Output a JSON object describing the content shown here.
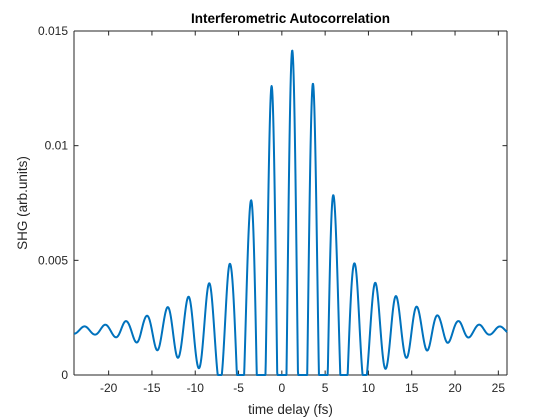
{
  "chart_data": {
    "type": "line",
    "title": "Interferometric Autocorrelation",
    "xlabel": "time delay (fs)",
    "ylabel": "SHG (arb.units)",
    "xlim": [
      -24,
      26
    ],
    "ylim": [
      0,
      0.015
    ],
    "x_ticks": [
      -20,
      -15,
      -10,
      -5,
      0,
      5,
      10,
      15,
      20,
      25
    ],
    "x_tick_labels": [
      "-20",
      "-15",
      "-10",
      "-5",
      "0",
      "5",
      "10",
      "15",
      "20",
      "25"
    ],
    "y_ticks": [
      0,
      0.005,
      0.01,
      0.015
    ],
    "y_tick_labels": [
      "0",
      "0.005",
      "0.01",
      "0.015"
    ],
    "grid": false,
    "line_color": "#0072BD",
    "series": [
      {
        "model": "baseline + envelope(t) * (1 + cos(2*pi*(t - center)/period)) / 2",
        "center": 1.2,
        "period": 2.4,
        "baseline": 0.00195,
        "envelope_points": [
          [
            -24,
            0.00015
          ],
          [
            -22,
            0.00018
          ],
          [
            -20,
            0.00025
          ],
          [
            -18,
            0.0004
          ],
          [
            -16,
            0.0006
          ],
          [
            -14,
            0.0009
          ],
          [
            -12,
            0.0012
          ],
          [
            -10,
            0.0016
          ],
          [
            -8,
            0.0021
          ],
          [
            -6,
            0.0029
          ],
          [
            -4,
            0.0052
          ],
          [
            -2,
            0.0092
          ],
          [
            -1,
            0.0108
          ],
          [
            1.2,
            0.0122
          ],
          [
            3.5,
            0.0108
          ],
          [
            4.5,
            0.0092
          ],
          [
            6.5,
            0.0052
          ],
          [
            8.5,
            0.0029
          ],
          [
            10.5,
            0.0021
          ],
          [
            12.5,
            0.0016
          ],
          [
            14.5,
            0.0012
          ],
          [
            16.5,
            0.0009
          ],
          [
            18.5,
            0.0006
          ],
          [
            20.5,
            0.0004
          ],
          [
            22.5,
            0.00025
          ],
          [
            24.5,
            0.00018
          ],
          [
            26,
            0.00015
          ]
        ]
      }
    ]
  }
}
